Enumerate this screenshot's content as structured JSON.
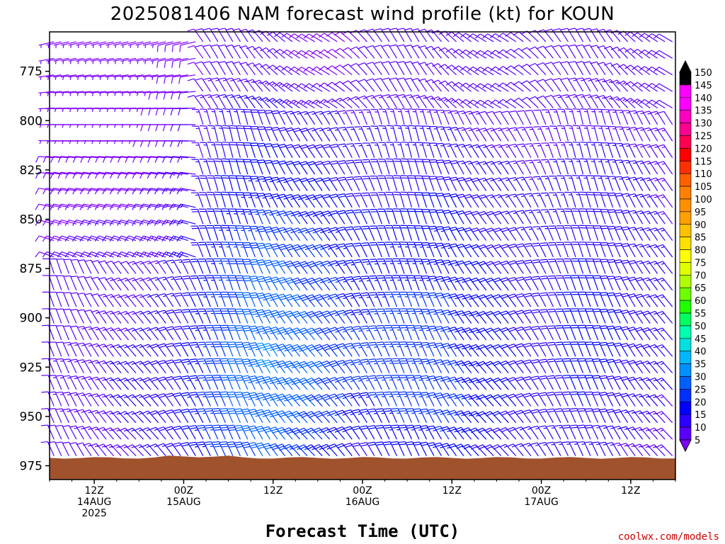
{
  "chart_data": {
    "type": "wind-barb time-height",
    "title": "2025081406 NAM forecast wind profile (kt) for KOUN",
    "xlabel": "Forecast Time (UTC)",
    "credit": "coolwx.com/models",
    "y_axis": {
      "reversed": true,
      "range": [
        982,
        755
      ],
      "ticks": [
        775,
        800,
        825,
        850,
        875,
        900,
        925,
        950,
        975
      ]
    },
    "x_axis": {
      "range_hours": [
        0,
        84
      ],
      "ticks": [
        {
          "hour": 6,
          "line1": "12Z",
          "line2": "14AUG",
          "line3": "2025"
        },
        {
          "hour": 18,
          "line1": "00Z",
          "line2": "15AUG",
          "line3": ""
        },
        {
          "hour": 30,
          "line1": "12Z",
          "line2": "",
          "line3": ""
        },
        {
          "hour": 42,
          "line1": "00Z",
          "line2": "16AUG",
          "line3": ""
        },
        {
          "hour": 54,
          "line1": "12Z",
          "line2": "",
          "line3": ""
        },
        {
          "hour": 66,
          "line1": "00Z",
          "line2": "17AUG",
          "line3": ""
        },
        {
          "hour": 78,
          "line1": "12Z",
          "line2": "",
          "line3": ""
        }
      ]
    },
    "colorbar": {
      "levels": [
        5,
        10,
        15,
        20,
        25,
        30,
        35,
        40,
        45,
        50,
        55,
        60,
        65,
        70,
        75,
        80,
        85,
        90,
        95,
        100,
        105,
        110,
        115,
        120,
        125,
        130,
        135,
        140,
        145,
        150
      ],
      "colors": [
        "#7f00ff",
        "#5a00ff",
        "#2a00ff",
        "#0000ff",
        "#0030ff",
        "#0060ff",
        "#0090ff",
        "#00b8ff",
        "#00e0e0",
        "#00ffb0",
        "#00ff60",
        "#20ff00",
        "#70ff00",
        "#b0ff00",
        "#e0ff00",
        "#ffff00",
        "#ffe000",
        "#ffc000",
        "#ffa000",
        "#ff9000",
        "#ff8000",
        "#ff6000",
        "#ff3000",
        "#ff0000",
        "#ff0050",
        "#ff0090",
        "#ff00c0",
        "#ff00ff",
        "#ff00ff",
        "#000000"
      ]
    },
    "terrain_color": "#a0522d",
    "wind_profile_kt": {
      "note": "Approximate wind speed (kt) per forecast hour and pressure level, read from barb colors/flags",
      "levels_hpa": [
        975,
        950,
        925,
        900,
        875,
        850,
        825,
        800,
        775
      ],
      "hours": [
        0,
        6,
        12,
        18,
        24,
        30,
        36,
        42,
        48,
        54,
        60,
        66,
        72,
        78,
        84
      ],
      "speed": [
        [
          10,
          12,
          14,
          18,
          28,
          30,
          24,
          18,
          20,
          22,
          18,
          14,
          16,
          14,
          12
        ],
        [
          12,
          14,
          16,
          20,
          30,
          34,
          30,
          24,
          26,
          28,
          22,
          18,
          20,
          18,
          14
        ],
        [
          12,
          14,
          16,
          20,
          30,
          36,
          32,
          26,
          28,
          26,
          22,
          18,
          22,
          20,
          16
        ],
        [
          10,
          12,
          14,
          18,
          28,
          34,
          30,
          24,
          26,
          26,
          22,
          18,
          22,
          20,
          16
        ],
        [
          10,
          12,
          12,
          16,
          26,
          32,
          28,
          22,
          24,
          24,
          20,
          18,
          20,
          18,
          16
        ],
        [
          8,
          10,
          10,
          14,
          22,
          26,
          24,
          20,
          20,
          22,
          18,
          16,
          18,
          18,
          14
        ],
        [
          8,
          8,
          8,
          12,
          20,
          22,
          20,
          18,
          18,
          18,
          16,
          14,
          16,
          16,
          14
        ],
        [
          6,
          6,
          6,
          10,
          16,
          18,
          16,
          14,
          14,
          14,
          12,
          12,
          14,
          14,
          12
        ],
        [
          6,
          6,
          6,
          8,
          12,
          12,
          8,
          10,
          10,
          10,
          10,
          10,
          12,
          12,
          10
        ]
      ]
    }
  }
}
